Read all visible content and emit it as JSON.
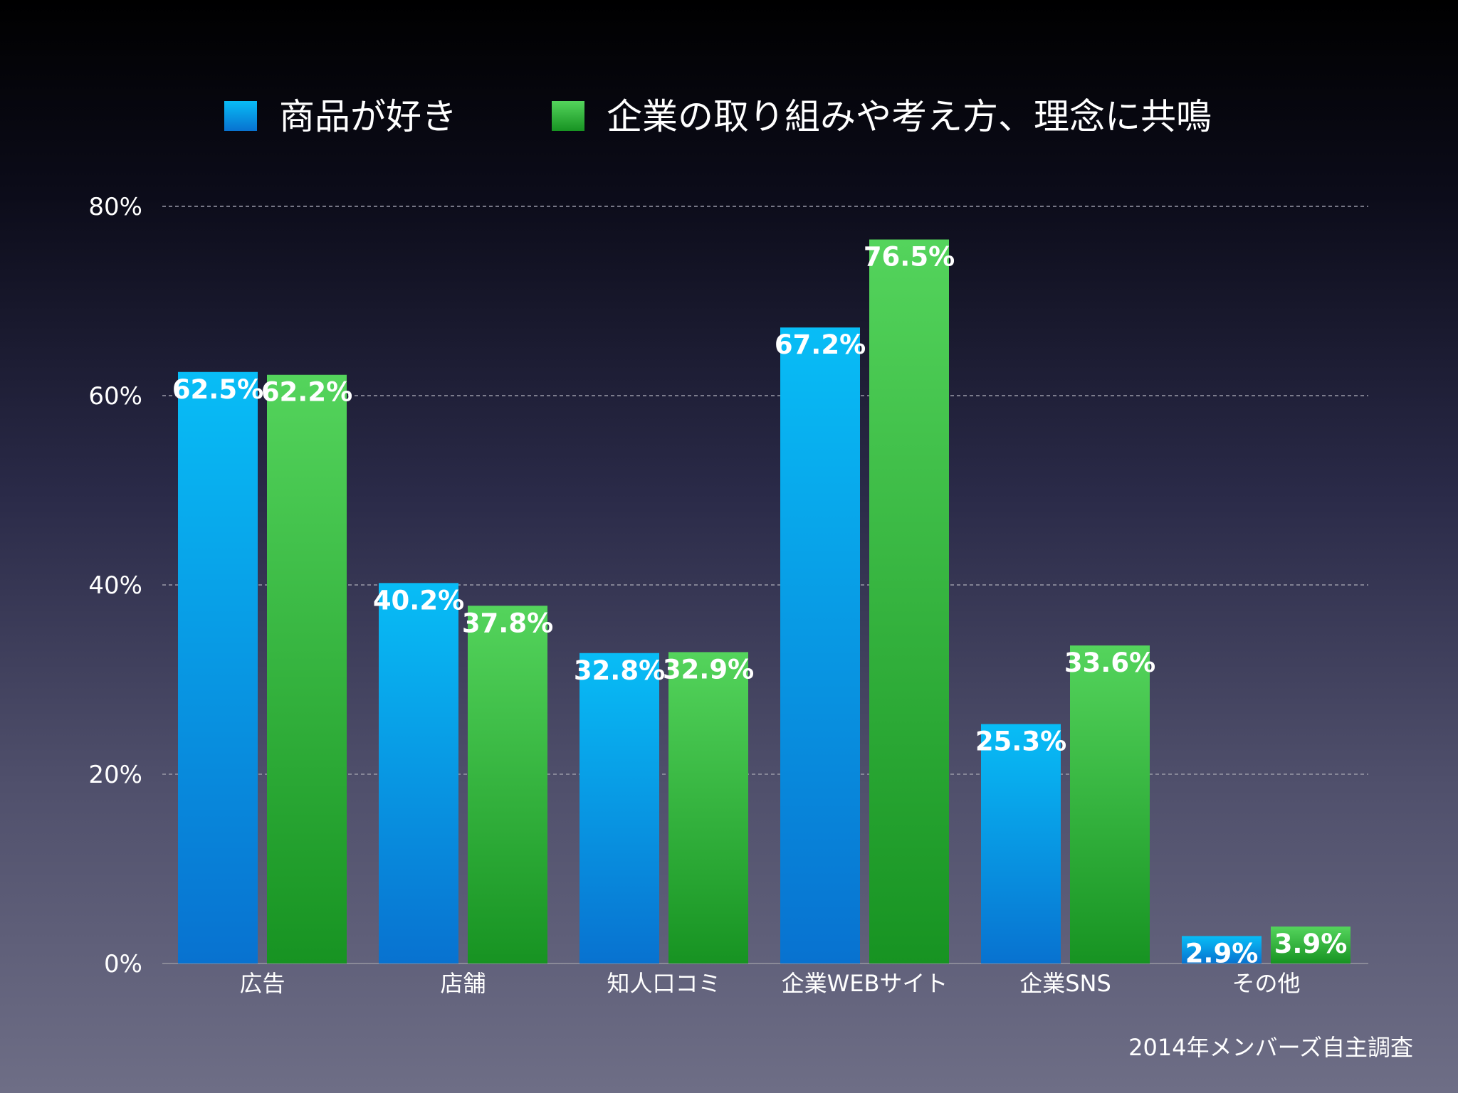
{
  "chart_data": {
    "type": "bar",
    "categories": [
      "広告",
      "店舗",
      "知人口コミ",
      "企業WEBサイト",
      "企業SNS",
      "その他"
    ],
    "series": [
      {
        "name": "商品が好き",
        "values": [
          62.5,
          40.2,
          32.8,
          67.2,
          25.3,
          2.9
        ],
        "labels": [
          "62.5%",
          "40.2%",
          "32.8%",
          "67.2%",
          "25.3%",
          "2.9%"
        ],
        "color": "#1aa8ec"
      },
      {
        "name": "企業の取り組みや考え方、理念に共鳴",
        "values": [
          62.2,
          37.8,
          32.9,
          76.5,
          33.6,
          3.9
        ],
        "labels": [
          "62.2%",
          "37.8%",
          "32.9%",
          "76.5%",
          "33.6%",
          "3.9%"
        ],
        "color": "#3cc24a"
      }
    ],
    "ylim": [
      0,
      80
    ],
    "yticks": [
      0,
      20,
      40,
      60,
      80
    ],
    "ytick_labels": [
      "0%",
      "20%",
      "40%",
      "60%",
      "80%"
    ],
    "grid": true,
    "legend": "top",
    "source": "2014年メンバーズ自主調査"
  }
}
